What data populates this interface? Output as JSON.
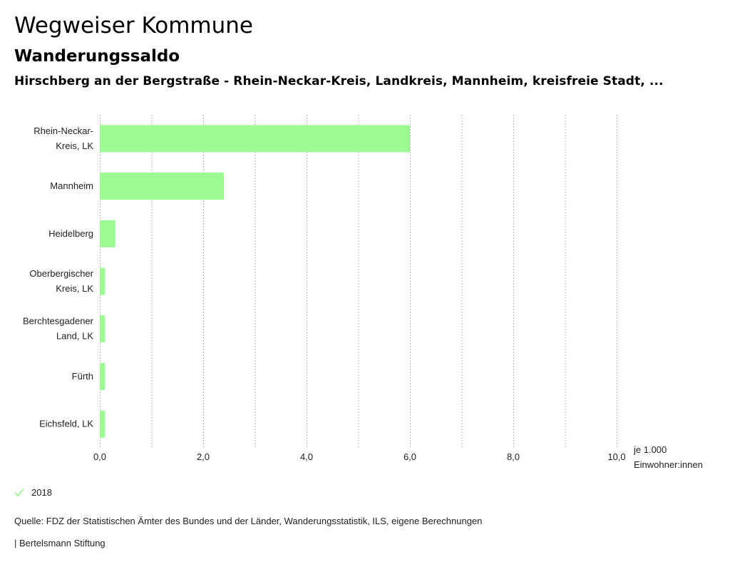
{
  "header": {
    "title": "Wegweiser Kommune",
    "subtitle": "Wanderungssaldo",
    "region": "Hirschberg an der Bergstraße - Rhein-Neckar-Kreis, Landkreis, Mannheim, kreisfreie Stadt, ..."
  },
  "chart_data": {
    "type": "bar",
    "orientation": "horizontal",
    "categories": [
      [
        "Rhein-Neckar-",
        "Kreis, LK"
      ],
      [
        "Mannheim"
      ],
      [
        "Heidelberg"
      ],
      [
        "Oberbergischer",
        "Kreis, LK"
      ],
      [
        "Berchtesgadener",
        "Land, LK"
      ],
      [
        "Fürth"
      ],
      [
        "Eichsfeld, LK"
      ]
    ],
    "series": [
      {
        "name": "2018",
        "values": [
          6.0,
          2.4,
          0.3,
          0.1,
          0.1,
          0.1,
          0.1
        ],
        "color": "#9cf994"
      }
    ],
    "xlim": [
      0,
      10
    ],
    "xticks": [
      0,
      2,
      4,
      6,
      8,
      10
    ],
    "xtick_labels": [
      "0,0",
      "2,0",
      "4,0",
      "6,0",
      "8,0",
      "10,0"
    ],
    "xlabel": [
      "je 1.000",
      "Einwohner:innen"
    ],
    "grid": "vertical-dotted"
  },
  "legend": {
    "label": "2018",
    "color": "#9cf994"
  },
  "footer": {
    "source": "Quelle: FDZ der Statistischen Ämter des Bundes und der Länder, Wanderungsstatistik, ILS, eigene Berechnungen",
    "credit": "| Bertelsmann Stiftung"
  }
}
